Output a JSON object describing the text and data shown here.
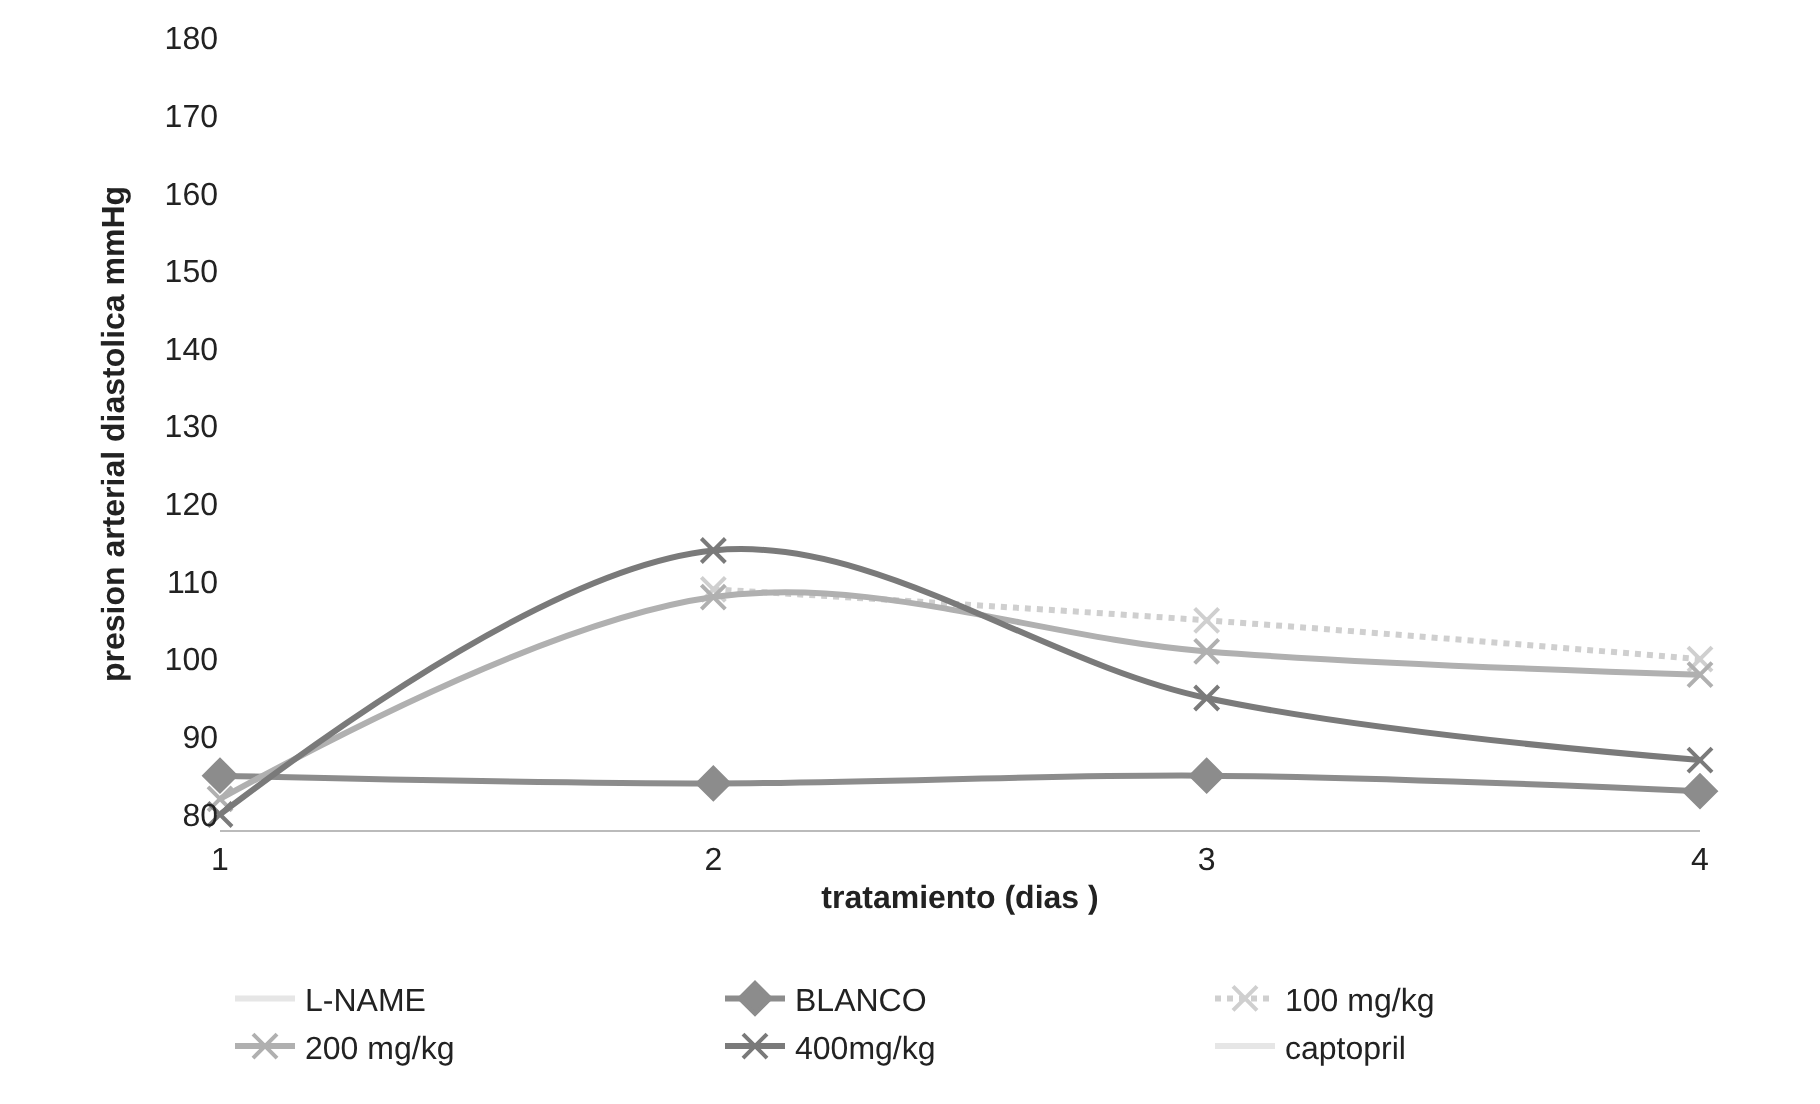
{
  "chart_data": {
    "type": "line",
    "xlabel": "tratamiento (dias )",
    "ylabel": "presion arterial diastolica mmHg",
    "x": [
      1,
      2,
      3,
      4
    ],
    "xlim": [
      1,
      4
    ],
    "xticks": [
      1,
      2,
      3,
      4
    ],
    "ylim": [
      78,
      180
    ],
    "yticks": [
      80,
      90,
      100,
      110,
      120,
      130,
      140,
      150,
      160,
      170,
      180
    ],
    "legend": "bottom",
    "series": [
      {
        "name": "L-NAME",
        "color": "#e6e6e6",
        "values": [
          null,
          null,
          null,
          null
        ],
        "marker": "none"
      },
      {
        "name": "BLANCO",
        "color": "#8c8c8c",
        "values": [
          85,
          84,
          85,
          83
        ],
        "marker": "diamond"
      },
      {
        "name": "100 mg/kg",
        "color": "#cfcfcf",
        "values": [
          null,
          109,
          105,
          100
        ],
        "marker": "cross",
        "line_style": "dotted"
      },
      {
        "name": "200 mg/kg",
        "color": "#b0b0b0",
        "values": [
          82,
          108,
          101,
          98
        ],
        "marker": "cross"
      },
      {
        "name": "400mg/kg",
        "color": "#7a7a7a",
        "values": [
          80,
          114,
          95,
          87
        ],
        "marker": "cross"
      },
      {
        "name": "captopril",
        "color": "#e6e6e6",
        "values": [
          null,
          null,
          null,
          null
        ],
        "marker": "none"
      }
    ]
  }
}
